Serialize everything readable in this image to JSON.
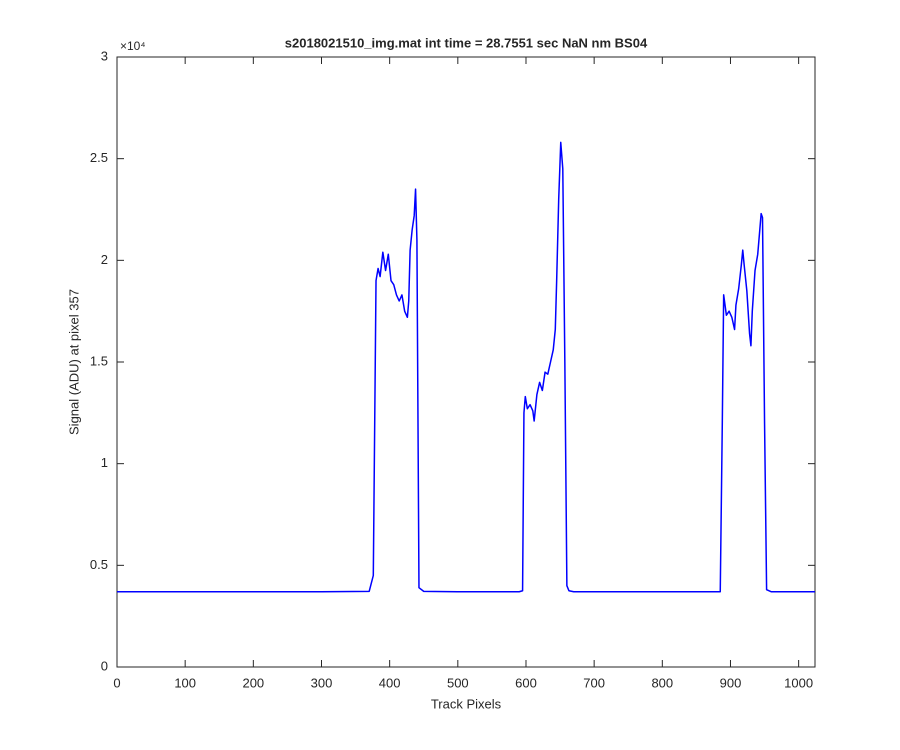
{
  "chart_data": {
    "type": "line",
    "title": "s2018021510_img.mat int time = 28.7551 sec  NaN nm BS04",
    "x_label": "Track Pixels",
    "y_label": "Signal (ADU) at pixel 357",
    "y_scale_label": "×10⁴",
    "x": [
      0,
      100,
      200,
      300,
      370,
      376,
      380,
      383,
      386,
      390,
      394,
      398,
      402,
      406,
      410,
      414,
      418,
      422,
      426,
      428,
      430,
      433,
      436,
      438,
      440,
      443,
      450,
      500,
      590,
      595,
      597,
      599,
      602,
      606,
      610,
      612,
      616,
      620,
      624,
      628,
      632,
      636,
      640,
      643,
      645,
      648,
      651,
      654,
      657,
      660,
      663,
      670,
      750,
      850,
      885,
      888,
      890,
      894,
      898,
      902,
      906,
      908,
      912,
      916,
      918,
      920,
      924,
      928,
      930,
      932,
      936,
      940,
      943,
      945,
      947,
      950,
      953,
      960,
      1024
    ],
    "series": [
      {
        "color": "#0000ff",
        "values": [
          3700,
          3700,
          3700,
          3700,
          3720,
          4500,
          19000,
          19600,
          19200,
          20400,
          19500,
          20300,
          19000,
          18800,
          18300,
          18000,
          18300,
          17500,
          17200,
          18000,
          20500,
          21500,
          22200,
          23500,
          21000,
          3900,
          3720,
          3700,
          3700,
          3750,
          12500,
          13300,
          12700,
          12900,
          12600,
          12100,
          13400,
          14000,
          13600,
          14500,
          14400,
          15000,
          15600,
          16600,
          19000,
          23000,
          25800,
          24500,
          15000,
          4000,
          3750,
          3700,
          3700,
          3700,
          3700,
          12000,
          18300,
          17300,
          17500,
          17200,
          16600,
          17800,
          18600,
          19800,
          20500,
          19800,
          18500,
          16400,
          15800,
          17500,
          19500,
          20300,
          21500,
          22300,
          22100,
          12000,
          3800,
          3700,
          3700
        ]
      }
    ],
    "xlim": [
      0,
      1024
    ],
    "ylim": [
      0,
      30000
    ],
    "xticks": [
      0,
      100,
      200,
      300,
      400,
      500,
      600,
      700,
      800,
      900,
      1000
    ],
    "yticks": [
      0,
      {
        "value": 5000,
        "label": "0.5"
      },
      {
        "value": 10000,
        "label": "1"
      },
      {
        "value": 15000,
        "label": "1.5"
      },
      {
        "value": 20000,
        "label": "2"
      },
      {
        "value": 25000,
        "label": "2.5"
      },
      {
        "value": 30000,
        "label": "3"
      }
    ]
  }
}
